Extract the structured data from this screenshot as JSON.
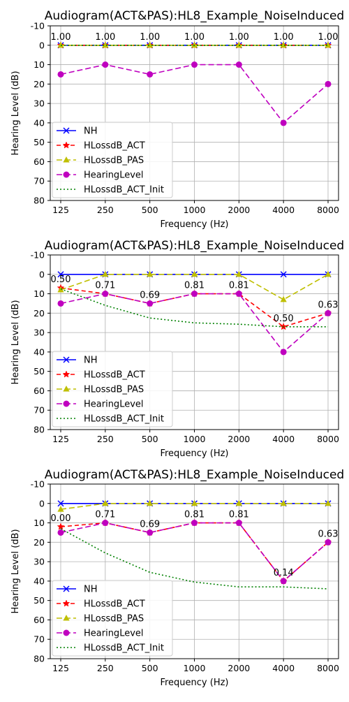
{
  "chart_data": [
    {
      "type": "line",
      "title": "Audiogram(ACT&PAS):HL8_Example_NoiseInduced",
      "xlabel": "Frequency (Hz)",
      "ylabel": "Hearing Level (dB)",
      "categories": [
        "125",
        "250",
        "500",
        "1000",
        "2000",
        "4000",
        "8000"
      ],
      "yticks": [
        "-10",
        "0",
        "10",
        "20",
        "30",
        "40",
        "50",
        "60",
        "70",
        "80"
      ],
      "ylim": [
        80,
        -10
      ],
      "grid": true,
      "legend_position": "lower-left",
      "series": [
        {
          "name": "NH",
          "values": [
            0,
            0,
            0,
            0,
            0,
            0,
            0
          ]
        },
        {
          "name": "HLossdB_ACT",
          "values": [
            0,
            0,
            0,
            0,
            0,
            0,
            0
          ]
        },
        {
          "name": "HLossdB_PAS",
          "values": [
            0,
            0,
            0,
            0,
            0,
            0,
            0
          ]
        },
        {
          "name": "HearingLevel",
          "values": [
            15,
            10,
            15,
            10,
            10,
            40,
            20
          ]
        },
        {
          "name": "HLossdB_ACT_Init",
          "values": [
            0,
            0,
            0,
            0,
            0,
            0,
            0
          ]
        }
      ],
      "annotations": [
        {
          "x": "125",
          "y": 0,
          "text": "1.00"
        },
        {
          "x": "250",
          "y": 0,
          "text": "1.00"
        },
        {
          "x": "500",
          "y": 0,
          "text": "1.00"
        },
        {
          "x": "1000",
          "y": 0,
          "text": "1.00"
        },
        {
          "x": "2000",
          "y": 0,
          "text": "1.00"
        },
        {
          "x": "4000",
          "y": 0,
          "text": "1.00"
        },
        {
          "x": "8000",
          "y": 0,
          "text": "1.00"
        }
      ]
    },
    {
      "type": "line",
      "title": "Audiogram(ACT&PAS):HL8_Example_NoiseInduced",
      "xlabel": "Frequency (Hz)",
      "ylabel": "Hearing Level (dB)",
      "categories": [
        "125",
        "250",
        "500",
        "1000",
        "2000",
        "4000",
        "8000"
      ],
      "yticks": [
        "-10",
        "0",
        "10",
        "20",
        "30",
        "40",
        "50",
        "60",
        "70",
        "80"
      ],
      "ylim": [
        80,
        -10
      ],
      "grid": true,
      "legend_position": "lower-left",
      "series": [
        {
          "name": "NH",
          "values": [
            0,
            0,
            0,
            0,
            0,
            0,
            0
          ]
        },
        {
          "name": "HLossdB_ACT",
          "values": [
            7,
            10,
            15,
            10,
            10,
            27,
            20
          ]
        },
        {
          "name": "HLossdB_PAS",
          "values": [
            8,
            0,
            0,
            0,
            0,
            13,
            0
          ]
        },
        {
          "name": "HearingLevel",
          "values": [
            15,
            10,
            15,
            10,
            10,
            40,
            20
          ]
        },
        {
          "name": "HLossdB_ACT_Init",
          "values": [
            7.5,
            16,
            22.5,
            25,
            25.7,
            27,
            27
          ]
        }
      ],
      "annotations": [
        {
          "x": "125",
          "y": 7,
          "text": "0.50"
        },
        {
          "x": "250",
          "y": 10,
          "text": "0.71"
        },
        {
          "x": "500",
          "y": 15,
          "text": "0.69"
        },
        {
          "x": "1000",
          "y": 10,
          "text": "0.81"
        },
        {
          "x": "2000",
          "y": 10,
          "text": "0.81"
        },
        {
          "x": "4000",
          "y": 27,
          "text": "0.50"
        },
        {
          "x": "8000",
          "y": 20,
          "text": "0.63"
        }
      ]
    },
    {
      "type": "line",
      "title": "Audiogram(ACT&PAS):HL8_Example_NoiseInduced",
      "xlabel": "Frequency (Hz)",
      "ylabel": "Hearing Level (dB)",
      "categories": [
        "125",
        "250",
        "500",
        "1000",
        "2000",
        "4000",
        "8000"
      ],
      "yticks": [
        "-10",
        "0",
        "10",
        "20",
        "30",
        "40",
        "50",
        "60",
        "70",
        "80"
      ],
      "ylim": [
        80,
        -10
      ],
      "grid": true,
      "legend_position": "lower-left",
      "series": [
        {
          "name": "NH",
          "values": [
            0,
            0,
            0,
            0,
            0,
            0,
            0
          ]
        },
        {
          "name": "HLossdB_ACT",
          "values": [
            12,
            10,
            15,
            10,
            10,
            40,
            20
          ]
        },
        {
          "name": "HLossdB_PAS",
          "values": [
            3,
            0,
            0,
            0,
            0,
            0,
            0
          ]
        },
        {
          "name": "HearingLevel",
          "values": [
            15,
            10,
            15,
            10,
            10,
            40,
            20
          ]
        },
        {
          "name": "HLossdB_ACT_Init",
          "values": [
            13,
            25.5,
            35.5,
            40.5,
            43,
            43,
            44
          ]
        }
      ],
      "annotations": [
        {
          "x": "125",
          "y": 12,
          "text": "0.00"
        },
        {
          "x": "250",
          "y": 10,
          "text": "0.71"
        },
        {
          "x": "500",
          "y": 15,
          "text": "0.69"
        },
        {
          "x": "1000",
          "y": 10,
          "text": "0.81"
        },
        {
          "x": "2000",
          "y": 10,
          "text": "0.81"
        },
        {
          "x": "4000",
          "y": 40,
          "text": "0.14"
        },
        {
          "x": "8000",
          "y": 20,
          "text": "0.63"
        }
      ]
    }
  ],
  "series_styles": {
    "NH": {
      "color": "#0000ff",
      "dash": "",
      "marker": "x"
    },
    "HLossdB_ACT": {
      "color": "#ff0000",
      "dash": "6,4",
      "marker": "star"
    },
    "HLossdB_PAS": {
      "color": "#bfbf00",
      "dash": "8,4",
      "marker": "triangle"
    },
    "HearingLevel": {
      "color": "#bf00bf",
      "dash": "8,4",
      "marker": "circle"
    },
    "HLossdB_ACT_Init": {
      "color": "#008000",
      "dash": "2,3",
      "marker": "none"
    }
  }
}
